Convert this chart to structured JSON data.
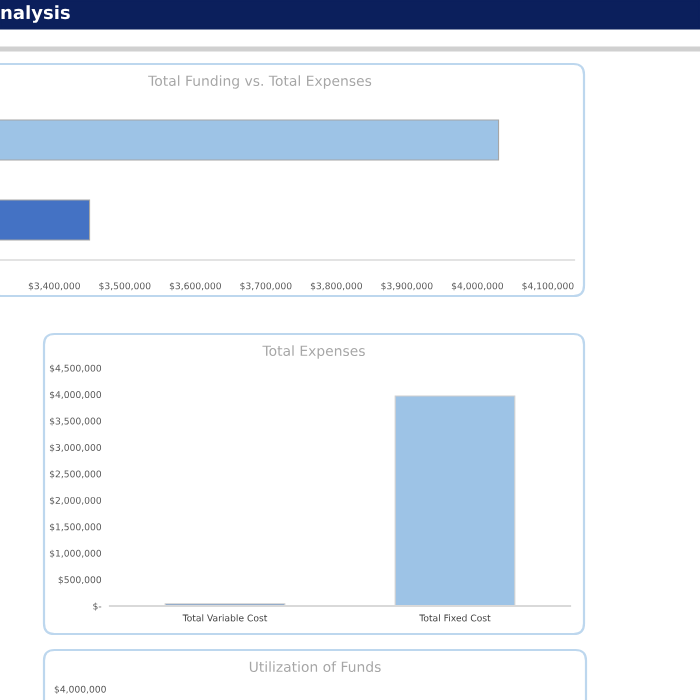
{
  "chart_data": [
    {
      "type": "other",
      "title": "nalysis"
    },
    {
      "type": "bar",
      "title": "Total Funding vs. Total Expenses",
      "orientation": "horizontal",
      "categories": [
        null,
        null
      ],
      "series": [
        {
          "colors": [
            "#9dc3e6",
            "#4472c4"
          ],
          "values": [
            4030000,
            3450000
          ]
        }
      ],
      "xlim": [
        3323000,
        4137000
      ],
      "xticks": [
        {
          "value": 3400000,
          "label": "$3,400,000"
        },
        {
          "value": 3500000,
          "label": "$3,500,000"
        },
        {
          "value": 3600000,
          "label": "$3,600,000"
        },
        {
          "value": 3700000,
          "label": "$3,700,000"
        },
        {
          "value": 3800000,
          "label": "$3,800,000"
        },
        {
          "value": 3900000,
          "label": "$3,900,000"
        },
        {
          "value": 4000000,
          "label": "$4,000,000"
        },
        {
          "value": 4100000,
          "label": "$4,100,000"
        }
      ],
      "grid": false,
      "legend": false
    },
    {
      "type": "bar",
      "title": "Total Expenses",
      "categories": [
        "Total Variable Cost",
        "Total Fixed Cost"
      ],
      "series": [
        {
          "colors": [
            "#5b8ac6",
            "#9dc3e6"
          ],
          "values": [
            40000,
            3970000
          ]
        }
      ],
      "ylim": [
        0,
        4500000
      ],
      "yticks": [
        {
          "value": 0,
          "label": "$-"
        },
        {
          "value": 500000,
          "label": "$500,000"
        },
        {
          "value": 1000000,
          "label": "$1,000,000"
        },
        {
          "value": 1500000,
          "label": "$1,500,000"
        },
        {
          "value": 2000000,
          "label": "$2,000,000"
        },
        {
          "value": 2500000,
          "label": "$2,500,000"
        },
        {
          "value": 3000000,
          "label": "$3,000,000"
        },
        {
          "value": 3500000,
          "label": "$3,500,000"
        },
        {
          "value": 4000000,
          "label": "$4,000,000"
        },
        {
          "value": 4500000,
          "label": "$4,500,000"
        }
      ],
      "grid": false,
      "legend": false
    },
    {
      "type": "other",
      "title": "Utilization of Funds",
      "annotations": [
        "$4,000,000"
      ]
    }
  ]
}
